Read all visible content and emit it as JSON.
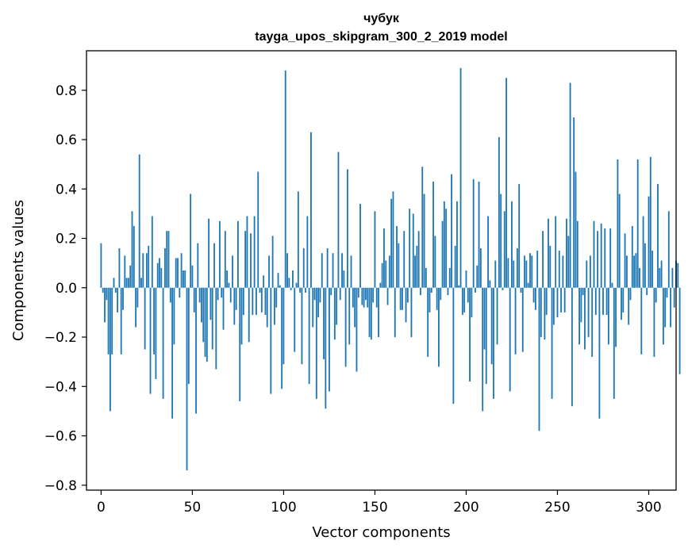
{
  "chart_data": {
    "type": "bar",
    "title": "чубук",
    "subtitle": "tayga_upos_skipgram_300_2_2019 model",
    "xlabel": "Vector components",
    "ylabel": "Components values",
    "xlim": [
      -8,
      315
    ],
    "ylim": [
      -0.82,
      0.96
    ],
    "xticks": [
      0,
      50,
      100,
      150,
      200,
      250,
      300
    ],
    "xtick_labels": [
      "0",
      "50",
      "100",
      "150",
      "200",
      "250",
      "300"
    ],
    "yticks": [
      -0.8,
      -0.6,
      -0.4,
      -0.2,
      0.0,
      0.2,
      0.4,
      0.6,
      0.8
    ],
    "ytick_labels": [
      "−0.8",
      "−0.6",
      "−0.4",
      "−0.2",
      "0.0",
      "0.2",
      "0.4",
      "0.6",
      "0.8"
    ],
    "bar_color": "#1f77b4",
    "grid": false,
    "legend": "none",
    "values": [
      0.18,
      -0.02,
      -0.14,
      -0.05,
      -0.27,
      -0.5,
      -0.27,
      0.04,
      -0.02,
      -0.1,
      0.16,
      -0.27,
      -0.09,
      0.13,
      0.04,
      0.04,
      0.09,
      0.31,
      0.25,
      -0.16,
      -0.08,
      0.54,
      0.04,
      0.14,
      -0.25,
      0.14,
      0.17,
      -0.43,
      0.29,
      -0.27,
      -0.37,
      0.1,
      0.12,
      0.08,
      -0.45,
      0.16,
      0.23,
      0.23,
      -0.06,
      -0.53,
      -0.23,
      0.12,
      0.12,
      -0.04,
      0.14,
      0.07,
      0.07,
      -0.74,
      -0.39,
      0.38,
      0.09,
      -0.1,
      -0.51,
      0.18,
      -0.06,
      -0.14,
      -0.22,
      -0.28,
      -0.3,
      0.28,
      -0.13,
      -0.25,
      0.18,
      -0.33,
      -0.05,
      0.27,
      -0.04,
      -0.17,
      0.23,
      0.07,
      0.02,
      -0.06,
      0.13,
      -0.15,
      -0.09,
      0.27,
      -0.46,
      -0.23,
      -0.11,
      0.23,
      0.29,
      -0.22,
      0.22,
      -0.11,
      0.29,
      -0.11,
      0.47,
      -0.02,
      -0.1,
      0.05,
      -0.11,
      -0.16,
      0.13,
      -0.43,
      0.21,
      -0.15,
      -0.08,
      0.06,
      0.01,
      -0.41,
      -0.31,
      0.88,
      0.14,
      0.04,
      -0.01,
      0.07,
      -0.26,
      0.02,
      0.39,
      -0.02,
      -0.31,
      0.16,
      -0.02,
      0.29,
      -0.39,
      0.63,
      -0.16,
      -0.05,
      -0.45,
      -0.12,
      -0.06,
      0.14,
      -0.29,
      -0.49,
      0.16,
      -0.42,
      -0.03,
      0.14,
      -0.21,
      -0.15,
      0.55,
      -0.05,
      0.14,
      0.07,
      -0.32,
      0.48,
      -0.23,
      0.13,
      -0.08,
      -0.16,
      -0.34,
      -0.04,
      0.34,
      -0.07,
      -0.08,
      -0.05,
      -0.08,
      -0.2,
      -0.21,
      -0.06,
      0.31,
      -0.08,
      -0.2,
      0.02,
      0.1,
      0.24,
      0.11,
      -0.07,
      0.13,
      0.36,
      0.39,
      -0.2,
      0.25,
      0.18,
      -0.09,
      -0.09,
      0.23,
      -0.14,
      -0.06,
      0.32,
      -0.2,
      0.3,
      0.13,
      0.17,
      0.23,
      -0.03,
      0.49,
      0.38,
      0.08,
      -0.28,
      -0.1,
      -0.02,
      0.43,
      0.21,
      -0.09,
      -0.32,
      -0.05,
      0.27,
      0.35,
      0.32,
      -0.03,
      0.08,
      0.46,
      -0.47,
      0.17,
      0.35,
      0.01,
      0.89,
      -0.11,
      -0.1,
      0.07,
      -0.06,
      -0.38,
      -0.12,
      0.44,
      -0.02,
      0.09,
      0.43,
      0.16,
      -0.5,
      -0.25,
      -0.39,
      0.29,
      0.03,
      -0.31,
      -0.45,
      0.11,
      -0.23,
      0.61,
      0.38,
      -0.01,
      0.31,
      0.85,
      0.12,
      -0.42,
      0.35,
      0.11,
      -0.27,
      0.16,
      0.42,
      -0.02,
      -0.26,
      0.13,
      0.11,
      0.02,
      0.14,
      0.13,
      -0.06,
      -0.09,
      0.15,
      -0.58,
      -0.2,
      0.23,
      -0.21,
      -0.11,
      0.28,
      0.17,
      -0.45,
      -0.15,
      0.29,
      -0.12,
      0.15,
      -0.1,
      0.13,
      -0.1,
      0.28,
      0.21,
      0.83,
      -0.48,
      0.69,
      0.47,
      0.27,
      -0.23,
      -0.14,
      -0.03,
      -0.25,
      0.11,
      -0.2,
      0.13,
      -0.28,
      0.27,
      -0.11,
      0.23,
      -0.53,
      0.26,
      -0.11,
      0.24,
      -0.11,
      -0.23,
      0.24,
      0.02,
      -0.45,
      -0.24,
      0.52,
      0.38,
      -0.13,
      -0.1,
      0.22,
      0.13,
      -0.15,
      -0.05,
      0.25,
      0.13,
      0.14,
      0.52,
      0.08,
      -0.27,
      0.29,
      0.18,
      -0.03,
      0.37,
      0.53,
      0.15,
      -0.28,
      -0.06,
      0.42,
      0.08,
      0.11,
      -0.23,
      -0.16,
      -0.04,
      0.31,
      -0.16,
      0.08,
      -0.08,
      0.11,
      0.1,
      -0.35
    ]
  }
}
